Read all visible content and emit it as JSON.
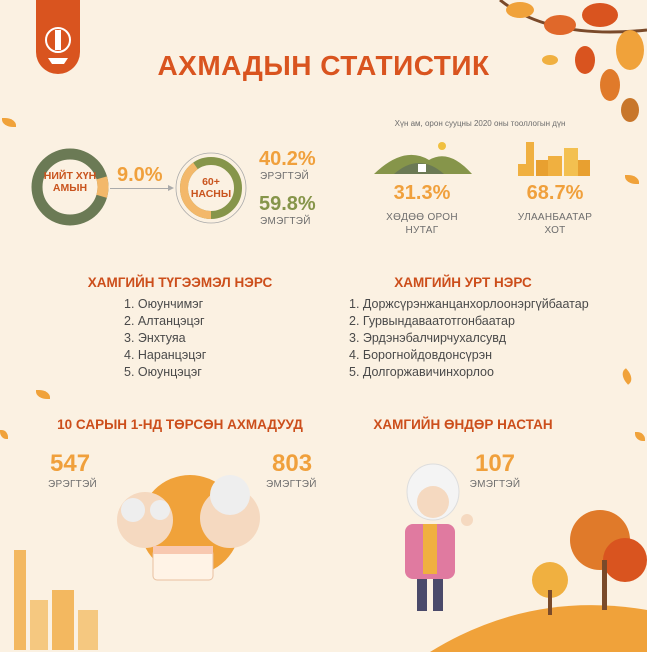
{
  "header": {
    "title": "АХМАДЫН СТАТИСТИК",
    "logo": "soyombo-logo"
  },
  "population": {
    "total_label": "НИЙТ ХҮН АМЫН",
    "elderly_share": "9.0%",
    "elderly_share_value": 9.0,
    "elderly_label": "60+ НАСНЫ",
    "male_pct": "40.2%",
    "male_value": 40.2,
    "male_label": "ЭРЭГТЭЙ",
    "female_pct": "59.8%",
    "female_value": 59.8,
    "female_label": "ЭМЭГТЭЙ"
  },
  "census": {
    "source": "Хүн ам, орон сууцны 2020 оны тооллогын дүн",
    "rural_pct": "31.3%",
    "rural_label_1": "ХӨДӨӨ ОРОН",
    "rural_label_2": "НУТАГ",
    "city_pct": "68.7%",
    "city_label_1": "УЛААНБААТАР",
    "city_label_2": "ХОТ"
  },
  "common_names": {
    "title": "ХАМГИЙН ТҮГЭЭМЭЛ НЭРС",
    "items": [
      "1. Оюунчимэг",
      "2. Алтанцэцэг",
      "3. Энхтуяа",
      "4. Наранцэцэг",
      "5. Оюунцэцэг"
    ]
  },
  "long_names": {
    "title": "ХАМГИЙН УРТ НЭРС",
    "items": [
      "1. Доржсүрэнжанцанхорлоонэргүйбаатар",
      "2. Гурвындаваатотгонбаатар",
      "3. Эрдэнэбалчирчухалсувд",
      "4. Борогнойдовдонсүрэн",
      "5. Долгоржавичинхорлоо"
    ]
  },
  "birthday": {
    "title": "10 САРЫН 1-НД ТӨРСӨН АХМАДУУД",
    "male_count": "547",
    "male_label": "ЭРЭГТЭЙ",
    "female_count": "803",
    "female_label": "ЭМЭГТЭЙ"
  },
  "oldest": {
    "title": "ХАМГИЙН ӨНДӨР НАСТАН",
    "age": "107",
    "label": "ЭМЭГТЭЙ"
  },
  "colors": {
    "title": "#d9541f",
    "orange": "#f0a03c",
    "green": "#86954a",
    "olive": "#6b7a55",
    "background": "#fbf1e2"
  }
}
